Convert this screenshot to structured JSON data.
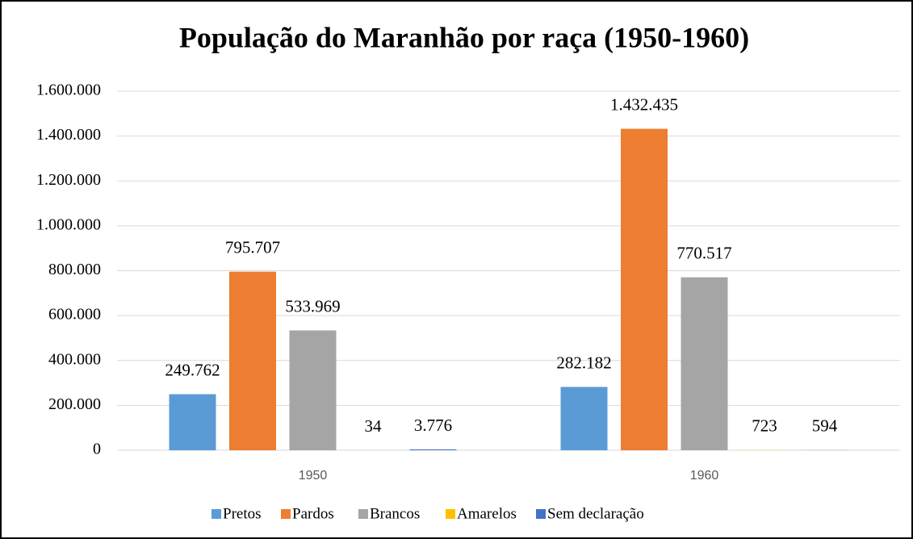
{
  "chart_data": {
    "type": "bar",
    "title": "População do Maranhão por raça (1950-1960)",
    "categories": [
      "1950",
      "1960"
    ],
    "series": [
      {
        "name": "Pretos",
        "color": "#5b9bd5",
        "values": [
          249762,
          282182
        ],
        "value_labels": [
          "249.762",
          "282.182"
        ]
      },
      {
        "name": "Pardos",
        "color": "#ed7d31",
        "values": [
          795707,
          1432435
        ],
        "value_labels": [
          "795.707",
          "1.432.435"
        ]
      },
      {
        "name": "Brancos",
        "color": "#a5a5a5",
        "values": [
          533969,
          770517
        ],
        "value_labels": [
          "533.969",
          "770.517"
        ]
      },
      {
        "name": "Amarelos",
        "color": "#ffc000",
        "values": [
          34,
          723
        ],
        "value_labels": [
          "34",
          "723"
        ]
      },
      {
        "name": "Sem declaração",
        "color": "#4472c4",
        "values": [
          3776,
          594
        ],
        "value_labels": [
          "3.776",
          "594"
        ]
      }
    ],
    "ylim": [
      0,
      1600000
    ],
    "yticks": [
      0,
      {
        "value": 200000,
        "label": "200.000"
      },
      {
        "value": 400000,
        "label": "400.000"
      },
      {
        "value": 600000,
        "label": "600.000"
      },
      {
        "value": 800000,
        "label": "800.000"
      },
      {
        "value": 1000000,
        "label": "1.000.000"
      },
      {
        "value": 1200000,
        "label": "1.200.000"
      },
      {
        "value": 1400000,
        "label": "1.400.000"
      },
      {
        "value": 1600000,
        "label": "1.600.000"
      }
    ],
    "grid": true,
    "legend": "bottom"
  }
}
